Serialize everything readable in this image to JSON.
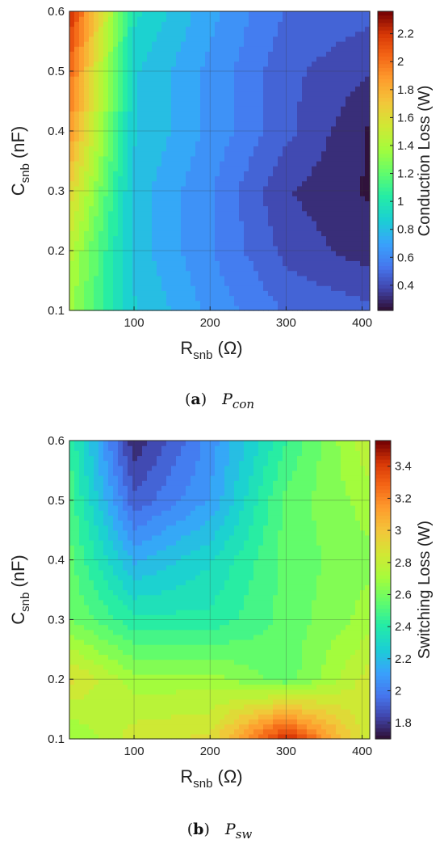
{
  "chart_data": [
    {
      "type": "heatmap",
      "caption": {
        "label": "a",
        "symbol": "P",
        "subscript": "con"
      },
      "x": [
        15,
        100,
        200,
        300,
        410
      ],
      "y": [
        0.1,
        0.2,
        0.3,
        0.4,
        0.5,
        0.6
      ],
      "z": [
        [
          1.35,
          0.85,
          0.65,
          0.5,
          0.45
        ],
        [
          1.45,
          0.8,
          0.6,
          0.4,
          0.3
        ],
        [
          1.65,
          0.8,
          0.6,
          0.35,
          0.25
        ],
        [
          1.9,
          0.85,
          0.65,
          0.45,
          0.25
        ],
        [
          2.05,
          0.85,
          0.65,
          0.45,
          0.35
        ],
        [
          2.25,
          0.95,
          0.7,
          0.5,
          0.45
        ]
      ],
      "xlim": [
        15,
        410
      ],
      "ylim": [
        0.1,
        0.6
      ],
      "xticks": [
        100,
        200,
        300,
        400
      ],
      "yticks": [
        0.1,
        0.2,
        0.3,
        0.4,
        0.5,
        0.6
      ],
      "xlabel": {
        "main": "R",
        "sub": "snb",
        "unit": " (Ω)"
      },
      "ylabel": {
        "main": "C",
        "sub": "snb",
        "unit": " (nF)"
      },
      "colorbar": {
        "label": "Conduction Loss (W)",
        "range": [
          0.22,
          2.36
        ],
        "ticks": [
          "0.4",
          "0.6",
          "0.8",
          "1",
          "1.2",
          "1.4",
          "1.6",
          "1.8",
          "2",
          "2.2"
        ],
        "tick_values": [
          0.4,
          0.6,
          0.8,
          1.0,
          1.2,
          1.4,
          1.6,
          1.8,
          2.0,
          2.2
        ]
      },
      "colormap": "turbo",
      "grid": true
    },
    {
      "type": "heatmap",
      "caption": {
        "label": "b",
        "symbol": "P",
        "subscript": "sw"
      },
      "x": [
        15,
        100,
        200,
        300,
        410
      ],
      "y": [
        0.1,
        0.2,
        0.3,
        0.4,
        0.5,
        0.6
      ],
      "z": [
        [
          2.65,
          2.85,
          2.9,
          3.5,
          2.8
        ],
        [
          2.9,
          2.7,
          2.7,
          2.55,
          2.85
        ],
        [
          2.6,
          2.4,
          2.4,
          2.55,
          2.7
        ],
        [
          2.55,
          2.15,
          2.3,
          2.55,
          2.65
        ],
        [
          2.5,
          1.9,
          2.1,
          2.55,
          2.7
        ],
        [
          2.45,
          1.75,
          2.05,
          2.45,
          2.8
        ]
      ],
      "xlim": [
        15,
        410
      ],
      "ylim": [
        0.1,
        0.6
      ],
      "xticks": [
        100,
        200,
        300,
        400
      ],
      "yticks": [
        0.1,
        0.2,
        0.3,
        0.4,
        0.5,
        0.6
      ],
      "xlabel": {
        "main": "R",
        "sub": "snb",
        "unit": " (Ω)"
      },
      "ylabel": {
        "main": "C",
        "sub": "snb",
        "unit": " (nF)"
      },
      "colorbar": {
        "label": "Switching Loss (W)",
        "range": [
          1.7,
          3.56
        ],
        "ticks": [
          "1.8",
          "2",
          "2.2",
          "2.4",
          "2.6",
          "2.8",
          "3",
          "3.2",
          "3.4"
        ],
        "tick_values": [
          1.8,
          2.0,
          2.2,
          2.4,
          2.6,
          2.8,
          3.0,
          3.2,
          3.4
        ]
      },
      "colormap": "turbo",
      "grid": true
    }
  ]
}
